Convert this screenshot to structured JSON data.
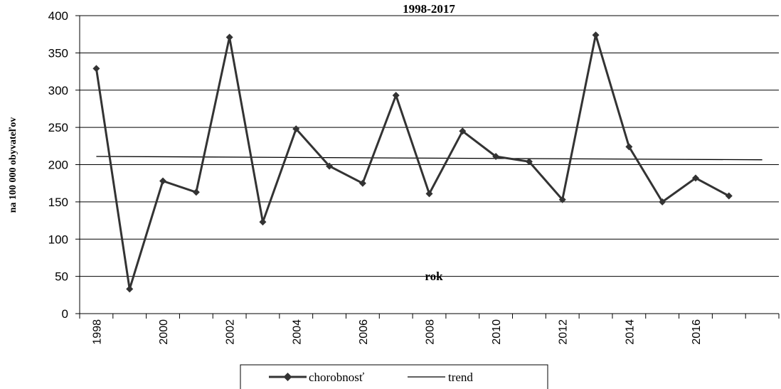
{
  "chart_data": {
    "type": "line",
    "title": "1998-2017",
    "ylabel": "na 100 000 obyvateľov",
    "annotation": "rok",
    "ylim": [
      0,
      400
    ],
    "yticks": [
      "0",
      "50",
      "100",
      "150",
      "200",
      "250",
      "300",
      "350",
      "400"
    ],
    "x": [
      1998,
      1999,
      2000,
      2001,
      2002,
      2003,
      2004,
      2005,
      2006,
      2007,
      2008,
      2009,
      2010,
      2011,
      2012,
      2013,
      2014,
      2015,
      2016,
      2017
    ],
    "xtick_labels": [
      "1998",
      "2000",
      "2002",
      "2004",
      "2006",
      "2008",
      "2010",
      "2012",
      "2014",
      "2016"
    ],
    "grid": "horizontal",
    "legend_position": "bottom",
    "series": [
      {
        "name": "chorobnosť",
        "color": "#333333",
        "marker": "diamond",
        "values": [
          329,
          33,
          178,
          163,
          371,
          123,
          248,
          198,
          175,
          293,
          161,
          245,
          211,
          204,
          153,
          374,
          224,
          150,
          182,
          158
        ]
      },
      {
        "name": "trend",
        "color": "#000000",
        "start": 211,
        "end": 206.5
      }
    ]
  }
}
